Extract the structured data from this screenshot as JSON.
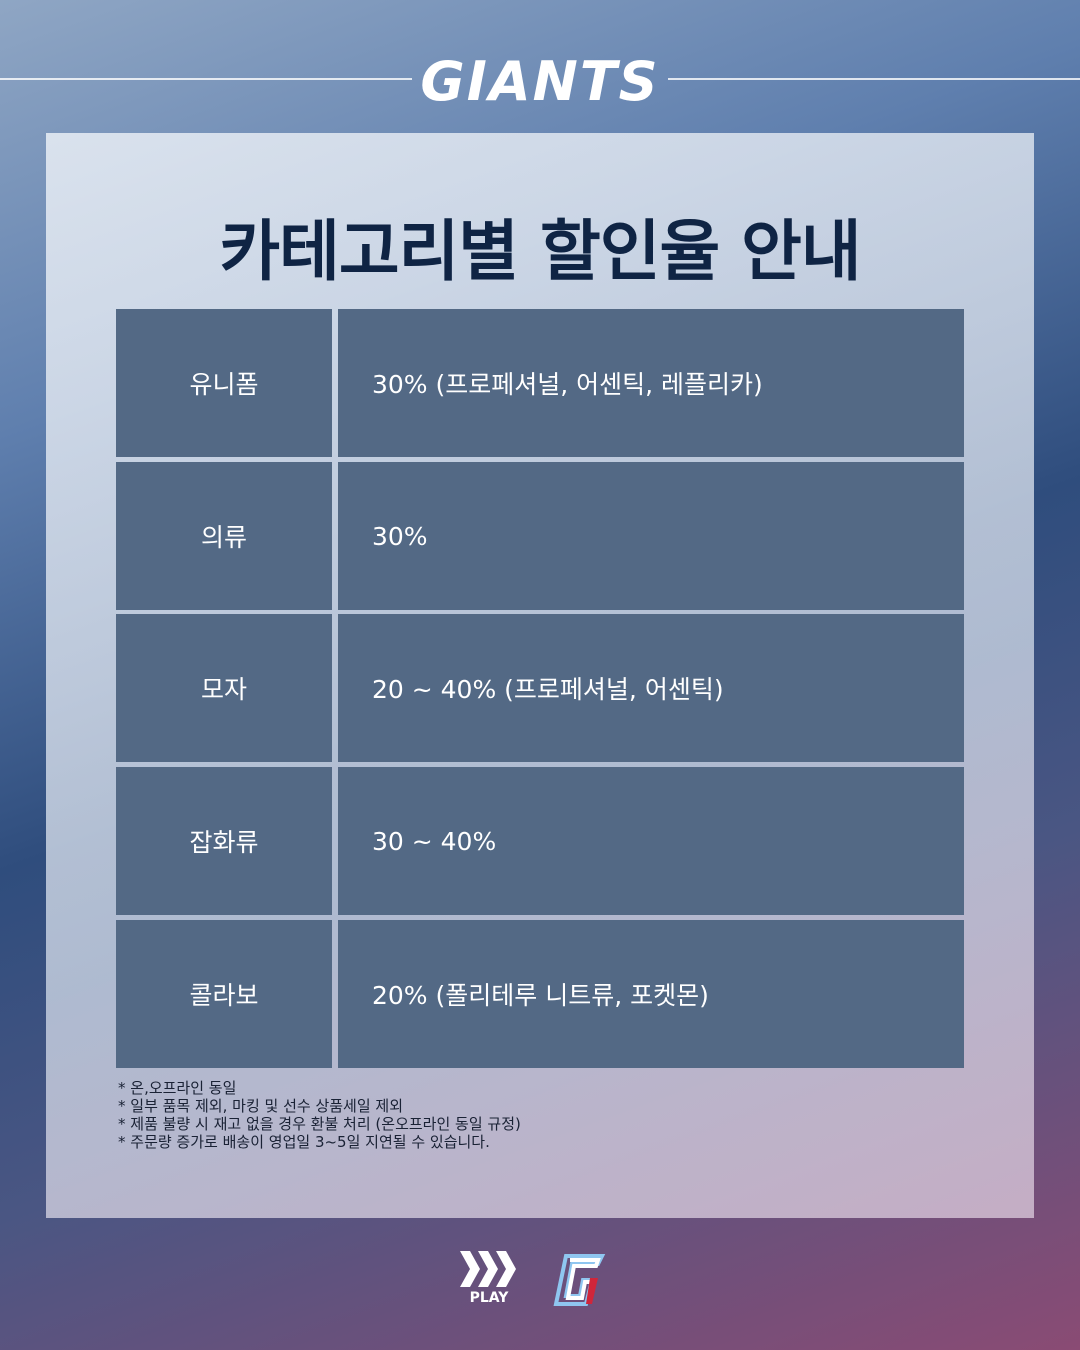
{
  "brand": "GIANTS",
  "title": "카테고리별 할인율 안내",
  "rows": [
    {
      "category": "유니폼",
      "discount": "30% (프로페셔널, 어센틱, 레플리카)"
    },
    {
      "category": "의류",
      "discount": "30%"
    },
    {
      "category": "모자",
      "discount": "20 ~ 40% (프로페셔널, 어센틱)"
    },
    {
      "category": "잡화류",
      "discount": "30 ~ 40%"
    },
    {
      "category": "콜라보",
      "discount": "20% (폴리테루 니트류, 포켓몬)"
    }
  ],
  "notes": [
    "*  온,오프라인 동일",
    "*  일부 품목 제외, 마킹 및 선수 상품세일 제외",
    "*  제품 불량 시 재고 없을 경우 환불 처리 (온오프라인 동일 규정)",
    "*  주문량 증가로 배송이 영업일 3~5일 지연될 수 있습니다."
  ],
  "footer": {
    "play_label": "PLAY"
  },
  "colors": {
    "title": "#0f2444",
    "cell": "#536985",
    "accent_red": "#d0263a"
  }
}
